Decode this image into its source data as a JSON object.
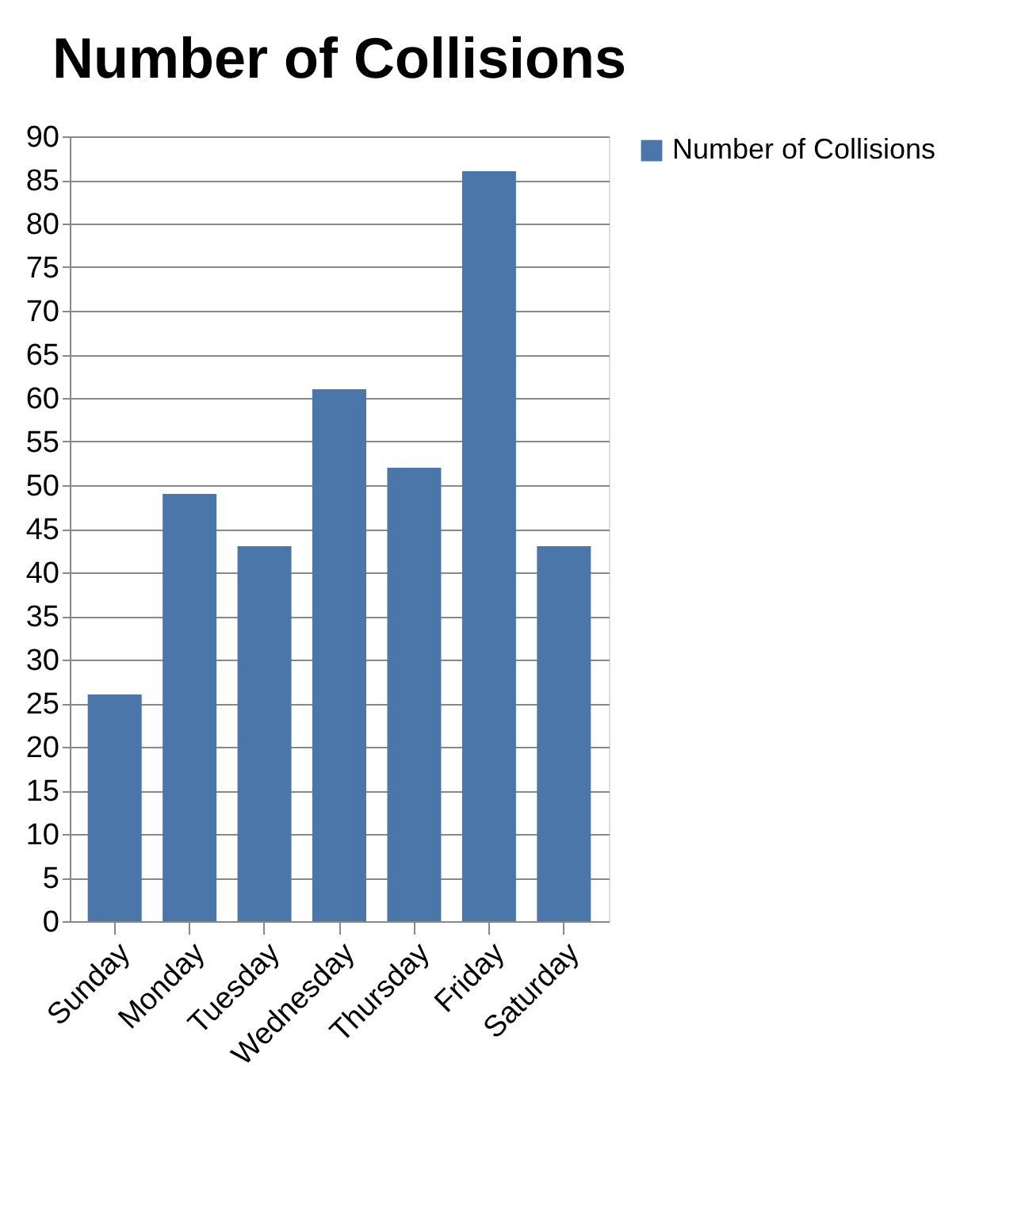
{
  "chart_data": {
    "type": "bar",
    "title": "Number of Collisions",
    "categories": [
      "Sunday",
      "Monday",
      "Tuesday",
      "Wednesday",
      "Thursday",
      "Friday",
      "Saturday"
    ],
    "series": [
      {
        "name": "Number of Collisions",
        "color": "#4a76aa",
        "values": [
          26,
          49,
          43,
          61,
          52,
          86,
          43
        ]
      }
    ],
    "ylim": [
      0,
      90
    ],
    "yticks": [
      0,
      5,
      10,
      15,
      20,
      25,
      30,
      35,
      40,
      45,
      50,
      55,
      60,
      65,
      70,
      75,
      80,
      85,
      90
    ],
    "grid": "y",
    "legend": "right"
  }
}
